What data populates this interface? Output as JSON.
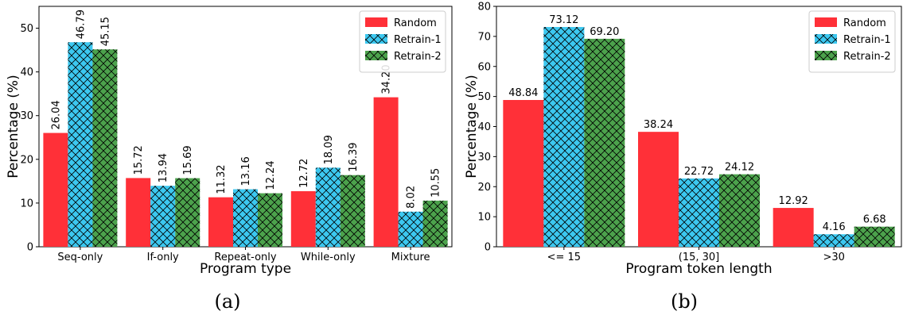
{
  "colors": {
    "Random": "#ff3038",
    "Retrain-1": "#3cc8f0",
    "Retrain-2": "#4ca24c"
  },
  "chart_data": [
    {
      "type": "bar",
      "caption": "(a)",
      "categories": [
        "Seq-only",
        "If-only",
        "Repeat-only",
        "While-only",
        "Mixture"
      ],
      "series": [
        {
          "name": "Random",
          "values": [
            26.04,
            15.72,
            11.32,
            12.72,
            34.2
          ],
          "labels": [
            "26.04",
            "15.72",
            "11.32",
            "12.72",
            "34.20"
          ]
        },
        {
          "name": "Retrain-1",
          "values": [
            46.79,
            13.94,
            13.16,
            18.09,
            8.02
          ],
          "labels": [
            "46.79",
            "13.94",
            "13.16",
            "18.09",
            "8.02"
          ]
        },
        {
          "name": "Retrain-2",
          "values": [
            45.15,
            15.69,
            12.24,
            16.39,
            10.55
          ],
          "labels": [
            "45.15",
            "15.69",
            "12.24",
            "16.39",
            "10.55"
          ]
        }
      ],
      "xlabel": "Program type",
      "ylabel": "Percentage (%)",
      "ylim": [
        0,
        55
      ],
      "yticks": [
        0,
        10,
        20,
        30,
        40,
        50
      ],
      "label_orientation": "vertical",
      "legend": "top-right"
    },
    {
      "type": "bar",
      "caption": "(b)",
      "categories": [
        "<= 15",
        "(15, 30]",
        ">30"
      ],
      "series": [
        {
          "name": "Random",
          "values": [
            48.84,
            38.24,
            12.92
          ],
          "labels": [
            "48.84",
            "38.24",
            "12.92"
          ]
        },
        {
          "name": "Retrain-1",
          "values": [
            73.12,
            22.72,
            4.16
          ],
          "labels": [
            "73.12",
            "22.72",
            "4.16"
          ]
        },
        {
          "name": "Retrain-2",
          "values": [
            69.2,
            24.12,
            6.68
          ],
          "labels": [
            "69.20",
            "24.12",
            "6.68"
          ]
        }
      ],
      "xlabel": "Program token length",
      "ylabel": "Percentage (%)",
      "ylim": [
        0,
        80
      ],
      "yticks": [
        0,
        10,
        20,
        30,
        40,
        50,
        60,
        70,
        80
      ],
      "label_orientation": "horizontal",
      "legend": "top-right"
    }
  ]
}
